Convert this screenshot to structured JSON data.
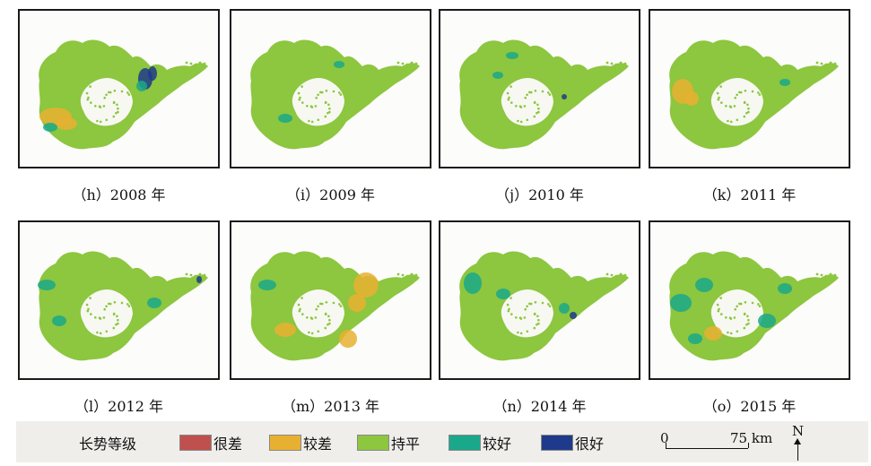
{
  "panels": [
    {
      "caption": "（h）2008 年",
      "dominant": "持平"
    },
    {
      "caption": "（i）2009 年",
      "dominant": "持平"
    },
    {
      "caption": "（j）2010 年",
      "dominant": "持平"
    },
    {
      "caption": "（k）2011 年",
      "dominant": "持平"
    },
    {
      "caption": "（l）2012 年",
      "dominant": "持平"
    },
    {
      "caption": "（m）2013 年",
      "dominant": "持平"
    },
    {
      "caption": "（n）2014 年",
      "dominant": "持平"
    },
    {
      "caption": "（o）2015 年",
      "dominant": "持平"
    }
  ],
  "legend": {
    "title": "长势等级",
    "items": [
      {
        "label": "很差",
        "color": "#c0504d"
      },
      {
        "label": "较差",
        "color": "#e8b030"
      },
      {
        "label": "持平",
        "color": "#8dc63f"
      },
      {
        "label": "较好",
        "color": "#1aa88a"
      },
      {
        "label": "很好",
        "color": "#1f3a8a"
      }
    ]
  },
  "scale": {
    "zero": "0",
    "distance": "75 km"
  },
  "north": {
    "label": "N"
  }
}
